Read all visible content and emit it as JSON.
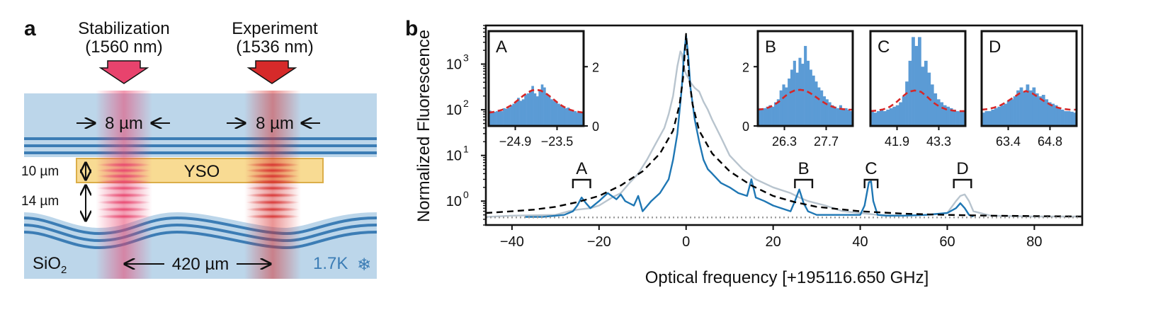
{
  "panel_a": {
    "label": "a",
    "beams": [
      {
        "name": "Stabilization",
        "wavelength": "(1560 nm)"
      },
      {
        "name": "Experiment",
        "wavelength": "(1536 nm)"
      }
    ],
    "waist_labels": [
      "8 µm",
      "8 µm"
    ],
    "thickness_labels": [
      "10 µm",
      "14 µm"
    ],
    "crystal_label": "YSO",
    "spacing_label": "420 µm",
    "substrate_label": "SiO",
    "substrate_subscript": "2",
    "temperature_label": "1.7K",
    "snowflake_icon": "❄",
    "colors": {
      "stabilization": "#e8436d",
      "experiment": "#d62a2a",
      "mirror": "#3c7db5",
      "crystal": "#f8d88a"
    }
  },
  "panel_b": {
    "label": "b",
    "xlabel": "Optical frequency [+195116.650 GHz]",
    "ylabel": "Normalized Fluorescence",
    "bracket_labels": [
      "A",
      "B",
      "C",
      "D"
    ]
  },
  "chart_data": [
    {
      "type": "line",
      "xlabel": "Optical frequency [+195116.650 GHz]",
      "ylabel": "Normalized Fluorescence",
      "xlim": [
        -46,
        91
      ],
      "ylim": [
        0.3,
        7000
      ],
      "yscale": "log",
      "xticks": [
        -40,
        -20,
        0,
        20,
        40,
        60,
        80
      ],
      "xtick_labels": [
        "−40",
        "−20",
        "0",
        "20",
        "40",
        "60",
        "80"
      ],
      "yticks": [
        1,
        10,
        100,
        1000
      ],
      "ytick_labels": [
        "10",
        "10",
        "10",
        "10"
      ],
      "ytick_exponents": [
        "0",
        "1",
        "2",
        "3"
      ],
      "colors": {
        "gray": "#b8c4ce",
        "blue": "#1f77b4",
        "fit": "#000000",
        "baseline": "#999999"
      },
      "series": [
        {
          "style": "solid",
          "color": "gray",
          "x": [
            -46,
            -40,
            -30,
            -27,
            -25,
            -22,
            -20,
            -17,
            -15,
            -13,
            -11,
            -9,
            -7,
            -5,
            -4,
            -3,
            -2,
            -1.3,
            -1,
            -0.6,
            0,
            0.5,
            1,
            2,
            3,
            4,
            5,
            6,
            8,
            10,
            13,
            16,
            20,
            24,
            26,
            28,
            32,
            36,
            40,
            44,
            50,
            56,
            60,
            62,
            63,
            64,
            65,
            66,
            70,
            80,
            91
          ],
          "y": [
            0.45,
            0.48,
            0.5,
            0.6,
            0.65,
            0.7,
            0.8,
            1.2,
            1.5,
            2.5,
            4,
            8,
            18,
            40,
            80,
            200,
            900,
            1900,
            1700,
            900,
            600,
            500,
            400,
            300,
            250,
            150,
            100,
            60,
            25,
            10,
            5,
            3,
            2,
            1.5,
            1.2,
            1.0,
            0.8,
            0.6,
            0.55,
            0.5,
            0.48,
            0.5,
            0.55,
            1.0,
            1.3,
            1.4,
            1.0,
            0.6,
            0.48,
            0.46,
            0.46
          ]
        },
        {
          "style": "solid",
          "color": "blue",
          "x": [
            -37,
            -33,
            -28,
            -26,
            -25,
            -24,
            -23,
            -22,
            -20,
            -18,
            -16,
            -15,
            -14,
            -12,
            -11,
            -10,
            -8,
            -6,
            -4,
            -3,
            -2,
            -1,
            -0.5,
            0,
            0.5,
            1,
            2,
            3,
            4,
            5,
            6,
            8,
            10,
            12,
            14,
            15,
            16,
            18,
            20,
            24,
            25,
            26,
            27,
            28,
            30,
            35,
            40,
            41,
            42,
            42.5,
            43,
            44,
            46,
            50,
            55,
            60,
            62,
            63,
            64,
            65,
            66
          ],
          "y": [
            0.45,
            0.45,
            0.5,
            0.6,
            0.8,
            1.2,
            0.9,
            0.7,
            1.0,
            1.5,
            1.1,
            1.4,
            1.0,
            0.8,
            1.3,
            0.6,
            1.0,
            1.5,
            3,
            8,
            30,
            300,
            1500,
            4200,
            1500,
            300,
            60,
            20,
            8,
            5,
            4,
            2.5,
            2,
            1.5,
            1.3,
            3,
            1.2,
            1.0,
            0.8,
            0.6,
            1.0,
            1.8,
            0.9,
            0.6,
            0.5,
            0.5,
            0.5,
            0.8,
            2.6,
            2.7,
            1.0,
            0.5,
            0.48,
            0.48,
            0.5,
            0.55,
            0.7,
            0.9,
            0.7,
            0.5,
            0.46
          ]
        },
        {
          "style": "dashed",
          "color": "fit",
          "x": [
            -46,
            -40,
            -35,
            -30,
            -25,
            -20,
            -15,
            -10,
            -6,
            -3,
            -1.5,
            -0.7,
            0,
            0.7,
            1.5,
            3,
            6,
            10,
            15,
            20,
            25,
            30,
            40,
            50,
            60,
            70,
            80,
            91
          ],
          "y": [
            0.55,
            0.6,
            0.65,
            0.75,
            0.95,
            1.3,
            2.2,
            4.5,
            11,
            35,
            130,
            500,
            4600,
            500,
            130,
            35,
            11,
            4.5,
            2.2,
            1.3,
            0.95,
            0.75,
            0.6,
            0.53,
            0.5,
            0.48,
            0.47,
            0.46
          ]
        },
        {
          "style": "dotted",
          "color": "baseline",
          "x": [
            -46,
            91
          ],
          "y": [
            0.44,
            0.44
          ]
        }
      ],
      "brackets": [
        {
          "label": "A",
          "x": [
            -26,
            -22
          ]
        },
        {
          "label": "B",
          "x": [
            25,
            29
          ]
        },
        {
          "label": "C",
          "x": [
            41,
            44
          ]
        },
        {
          "label": "D",
          "x": [
            61.5,
            65.5
          ]
        }
      ]
    },
    {
      "type": "bar",
      "title": "A",
      "xticks": [
        "−24.9",
        "−23.5"
      ],
      "ylim": [
        0,
        3.2
      ],
      "yticks": [
        "0",
        "2"
      ],
      "values": [
        0.52,
        0.45,
        0.48,
        0.5,
        0.55,
        0.5,
        0.6,
        0.58,
        0.62,
        0.7,
        0.75,
        0.8,
        0.95,
        0.85,
        0.9,
        1.05,
        1.1,
        1.2,
        1.35,
        1.1,
        1.0,
        1.2,
        1.4,
        1.3,
        1.1,
        1.0,
        0.9,
        0.85,
        0.8,
        0.75,
        0.7,
        0.65,
        0.6,
        0.62,
        0.55,
        0.5,
        0.5,
        0.45,
        0.48,
        0.45
      ],
      "fit": [
        0.45,
        0.47,
        0.5,
        0.54,
        0.6,
        0.68,
        0.78,
        0.9,
        1.02,
        1.12,
        1.2,
        1.22,
        1.2,
        1.12,
        1.02,
        0.9,
        0.78,
        0.68,
        0.6,
        0.54,
        0.5,
        0.47,
        0.45
      ]
    },
    {
      "type": "bar",
      "title": "B",
      "xticks": [
        "26.3",
        "27.7"
      ],
      "ylim": [
        0,
        3.2
      ],
      "yticks": [
        "0",
        "2"
      ],
      "values": [
        0.6,
        0.55,
        0.6,
        0.65,
        0.7,
        0.65,
        0.8,
        0.9,
        1.2,
        1.4,
        1.3,
        1.6,
        1.9,
        2.2,
        1.8,
        2.3,
        2.1,
        2.7,
        2.2,
        1.9,
        1.7,
        1.5,
        1.3,
        1.2,
        1.0,
        0.9,
        0.8,
        0.7,
        0.65,
        0.6,
        0.7,
        0.55,
        0.6,
        0.55,
        0.5
      ],
      "fit": [
        0.55,
        0.57,
        0.62,
        0.7,
        0.82,
        0.98,
        1.12,
        1.2,
        1.22,
        1.2,
        1.1,
        0.98,
        0.85,
        0.74,
        0.66,
        0.6,
        0.57,
        0.55,
        0.55
      ]
    },
    {
      "type": "bar",
      "title": "C",
      "xticks": [
        "41.9",
        "43.3"
      ],
      "ylim": [
        0,
        3.2
      ],
      "yticks": [],
      "values": [
        0.5,
        0.45,
        0.5,
        0.55,
        0.5,
        0.55,
        0.6,
        0.65,
        0.7,
        0.8,
        1.0,
        1.5,
        2.2,
        3.0,
        2.7,
        3.0,
        2.0,
        2.2,
        1.8,
        1.4,
        1.1,
        0.9,
        0.8,
        0.7,
        0.65,
        0.6,
        0.55,
        0.5,
        0.48,
        0.5
      ],
      "fit": [
        0.5,
        0.52,
        0.56,
        0.64,
        0.78,
        0.98,
        1.15,
        1.2,
        1.15,
        0.98,
        0.78,
        0.64,
        0.56,
        0.52,
        0.5,
        0.5
      ]
    },
    {
      "type": "bar",
      "title": "D",
      "xticks": [
        "63.4",
        "64.8"
      ],
      "ylim": [
        0,
        3.2
      ],
      "yticks": [],
      "values": [
        0.45,
        0.5,
        0.5,
        0.55,
        0.6,
        0.65,
        0.7,
        0.75,
        0.85,
        0.9,
        1.0,
        1.2,
        1.3,
        1.15,
        1.4,
        1.2,
        1.3,
        1.1,
        1.0,
        1.05,
        0.9,
        0.8,
        0.75,
        0.7,
        0.6,
        0.55,
        0.5,
        0.5,
        0.48,
        0.45
      ],
      "fit": [
        0.55,
        0.57,
        0.62,
        0.7,
        0.82,
        0.96,
        1.1,
        1.18,
        1.1,
        0.96,
        0.82,
        0.7,
        0.62,
        0.57,
        0.55,
        0.55
      ]
    }
  ]
}
